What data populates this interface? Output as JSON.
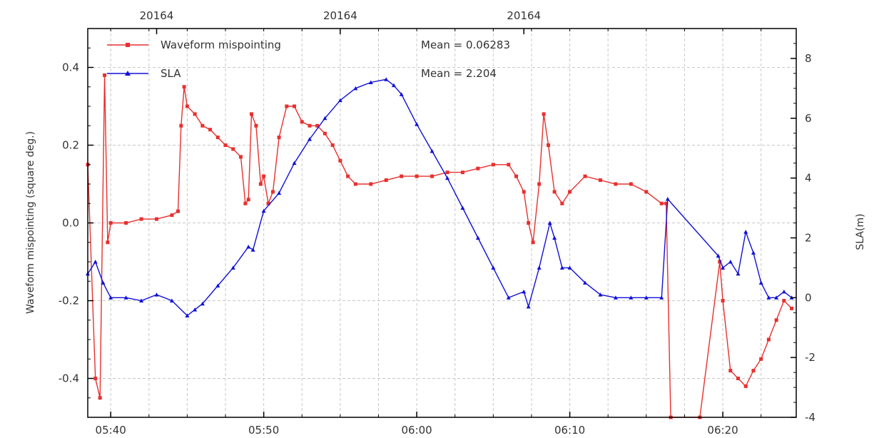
{
  "chart_data": {
    "type": "line",
    "title": "",
    "ylabel": "Waveform mispointing (square deg.)",
    "y2label": "SLA(m)",
    "top_axis_ticks": [
      {
        "x": "05:43",
        "label": "20164"
      },
      {
        "x": "05:55",
        "label": "20164"
      },
      {
        "x": "06:07",
        "label": "20164"
      }
    ],
    "x_ticks": [
      "05:40",
      "05:50",
      "06:00",
      "06:10",
      "06:20"
    ],
    "x_minor_interval_minutes": 2.5,
    "xlim": [
      "05:38.5",
      "06:24.8"
    ],
    "ylim": [
      -0.5,
      0.5
    ],
    "y2lim": [
      -4,
      9
    ],
    "y_ticks": [
      "-0.4",
      "-0.2",
      "0.0",
      "0.2",
      "0.4"
    ],
    "y2_ticks": [
      "-4",
      "-2",
      "0",
      "2",
      "4",
      "6",
      "8"
    ],
    "grid": true,
    "legend_position": "top-left",
    "colors": {
      "mispointing": "#e8302e",
      "sla": "#1010d8"
    },
    "series": [
      {
        "name": "Waveform mispointing",
        "axis": "left",
        "marker": "square",
        "mean_label": "Mean = 0.06283",
        "x": [
          "05:38.5",
          "05:39.0",
          "05:39.3",
          "05:39.6",
          "05:39.8",
          "05:40.0",
          "05:41.0",
          "05:42.0",
          "05:43.0",
          "05:44.0",
          "05:44.4",
          "05:44.6",
          "05:44.8",
          "05:45.0",
          "05:45.5",
          "05:46.0",
          "05:46.5",
          "05:47.0",
          "05:47.5",
          "05:48.0",
          "05:48.5",
          "05:48.8",
          "05:49.0",
          "05:49.2",
          "05:49.5",
          "05:49.8",
          "05:50.0",
          "05:50.3",
          "05:50.6",
          "05:51.0",
          "05:51.5",
          "05:52.0",
          "05:52.5",
          "05:53.0",
          "05:53.5",
          "05:54.0",
          "05:54.5",
          "05:55.0",
          "05:55.5",
          "05:56.0",
          "05:57.0",
          "05:58.0",
          "05:59.0",
          "06:00.0",
          "06:01.0",
          "06:02.0",
          "06:03.0",
          "06:04.0",
          "06:05.0",
          "06:06.0",
          "06:06.5",
          "06:07.0",
          "06:07.3",
          "06:07.6",
          "06:08.0",
          "06:08.3",
          "06:08.6",
          "06:09.0",
          "06:09.5",
          "06:10.0",
          "06:11.0",
          "06:12.0",
          "06:13.0",
          "06:14.0",
          "06:15.0",
          "06:16.0",
          "06:16.3",
          "06:16.6",
          "06:18.5",
          "06:19.8",
          "06:20.0",
          "06:20.5",
          "06:21.0",
          "06:21.5",
          "06:22.0",
          "06:22.5",
          "06:23.0",
          "06:23.5",
          "06:24.0",
          "06:24.5"
        ],
        "values": [
          0.15,
          -0.4,
          -0.45,
          0.38,
          -0.05,
          0.0,
          0.0,
          0.01,
          0.01,
          0.02,
          0.03,
          0.25,
          0.35,
          0.3,
          0.28,
          0.25,
          0.24,
          0.22,
          0.2,
          0.19,
          0.17,
          0.05,
          0.06,
          0.28,
          0.25,
          0.1,
          0.12,
          0.05,
          0.08,
          0.22,
          0.3,
          0.3,
          0.26,
          0.25,
          0.25,
          0.23,
          0.2,
          0.16,
          0.12,
          0.1,
          0.1,
          0.11,
          0.12,
          0.12,
          0.12,
          0.13,
          0.13,
          0.14,
          0.15,
          0.15,
          0.12,
          0.08,
          0.0,
          -0.05,
          0.1,
          0.28,
          0.2,
          0.08,
          0.05,
          0.08,
          0.12,
          0.11,
          0.1,
          0.1,
          0.08,
          0.05,
          0.05,
          -0.5,
          -0.5,
          -0.1,
          -0.2,
          -0.38,
          -0.4,
          -0.42,
          -0.38,
          -0.35,
          -0.3,
          -0.25,
          -0.2,
          -0.22
        ]
      },
      {
        "name": "SLA",
        "axis": "right",
        "marker": "triangle",
        "mean_label": "Mean = 2.204",
        "x": [
          "05:38.5",
          "05:39.0",
          "05:39.5",
          "05:40.0",
          "05:41.0",
          "05:42.0",
          "05:43.0",
          "05:44.0",
          "05:45.0",
          "05:45.5",
          "05:46.0",
          "05:47.0",
          "05:48.0",
          "05:49.0",
          "05:49.3",
          "05:50.0",
          "05:51.0",
          "05:52.0",
          "05:53.0",
          "05:54.0",
          "05:55.0",
          "05:56.0",
          "05:57.0",
          "05:58.0",
          "05:58.5",
          "05:59.0",
          "06:00.0",
          "06:01.0",
          "06:02.0",
          "06:03.0",
          "06:04.0",
          "06:05.0",
          "06:06.0",
          "06:07.0",
          "06:07.3",
          "06:08.0",
          "06:08.7",
          "06:09.0",
          "06:09.5",
          "06:10.0",
          "06:11.0",
          "06:12.0",
          "06:13.0",
          "06:14.0",
          "06:15.0",
          "06:16.0",
          "06:16.4",
          "06:19.7",
          "06:20.0",
          "06:20.5",
          "06:21.0",
          "06:21.5",
          "06:22.0",
          "06:22.5",
          "06:23.0",
          "06:23.5",
          "06:24.0",
          "06:24.5"
        ],
        "values": [
          0.8,
          1.2,
          0.5,
          0.0,
          0.0,
          -0.1,
          0.1,
          -0.1,
          -0.6,
          -0.4,
          -0.2,
          0.4,
          1.0,
          1.7,
          1.6,
          2.9,
          3.5,
          4.5,
          5.3,
          6.0,
          6.6,
          7.0,
          7.2,
          7.3,
          7.1,
          6.8,
          5.8,
          4.9,
          4.0,
          3.0,
          2.0,
          1.0,
          0.0,
          0.2,
          -0.3,
          1.0,
          2.5,
          2.0,
          1.0,
          1.0,
          0.5,
          0.1,
          0.0,
          0.0,
          0.0,
          0.0,
          3.3,
          1.4,
          1.0,
          1.2,
          0.8,
          2.2,
          1.5,
          0.5,
          0.0,
          0.0,
          0.2,
          0.0
        ]
      }
    ]
  }
}
